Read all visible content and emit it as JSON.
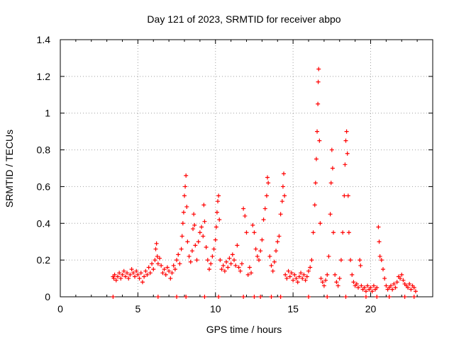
{
  "chart_data": {
    "type": "scatter",
    "title": "Day 121 of 2023, SRMTID for receiver abpo",
    "xlabel": "GPS time / hours",
    "ylabel": "SRMTID / TECUs",
    "xlim": [
      0,
      24
    ],
    "ylim": [
      0,
      1.4
    ],
    "x_ticks": [
      0,
      5,
      10,
      15,
      20
    ],
    "y_ticks": [
      0,
      0.2,
      0.4,
      0.6,
      0.8,
      1,
      1.2,
      1.4
    ],
    "x_tick_labels": [
      "0",
      "5",
      "10",
      "15",
      "20"
    ],
    "y_tick_labels": [
      "0",
      "0.2",
      "0.4",
      "0.6",
      "0.8",
      "1",
      "1.2",
      "1.4"
    ],
    "grid": true,
    "marker": "+",
    "color": "#ff0000",
    "series": [
      {
        "name": "SRMTID",
        "points": [
          [
            3.4,
            0.11
          ],
          [
            3.45,
            0.1
          ],
          [
            3.5,
            0.12
          ],
          [
            3.6,
            0.09
          ],
          [
            3.7,
            0.11
          ],
          [
            3.8,
            0.13
          ],
          [
            3.9,
            0.1
          ],
          [
            4.0,
            0.12
          ],
          [
            4.1,
            0.14
          ],
          [
            4.2,
            0.11
          ],
          [
            4.3,
            0.13
          ],
          [
            4.4,
            0.1
          ],
          [
            4.5,
            0.12
          ],
          [
            4.6,
            0.15
          ],
          [
            4.7,
            0.13
          ],
          [
            4.8,
            0.11
          ],
          [
            4.9,
            0.14
          ],
          [
            5.0,
            0.12
          ],
          [
            5.1,
            0.1
          ],
          [
            5.2,
            0.13
          ],
          [
            5.3,
            0.08
          ],
          [
            5.4,
            0.11
          ],
          [
            5.5,
            0.14
          ],
          [
            5.6,
            0.12
          ],
          [
            5.7,
            0.16
          ],
          [
            5.8,
            0.13
          ],
          [
            5.9,
            0.18
          ],
          [
            6.0,
            0.15
          ],
          [
            6.1,
            0.2
          ],
          [
            6.15,
            0.26
          ],
          [
            6.2,
            0.29
          ],
          [
            6.25,
            0.22
          ],
          [
            6.3,
            0.18
          ],
          [
            6.4,
            0.21
          ],
          [
            6.5,
            0.17
          ],
          [
            6.6,
            0.13
          ],
          [
            6.7,
            0.15
          ],
          [
            6.8,
            0.12
          ],
          [
            6.9,
            0.16
          ],
          [
            7.0,
            0.14
          ],
          [
            7.1,
            0.1
          ],
          [
            7.2,
            0.13
          ],
          [
            7.3,
            0.17
          ],
          [
            7.4,
            0.15
          ],
          [
            7.5,
            0.2
          ],
          [
            7.6,
            0.23
          ],
          [
            7.7,
            0.18
          ],
          [
            7.8,
            0.26
          ],
          [
            7.85,
            0.33
          ],
          [
            7.9,
            0.4
          ],
          [
            7.95,
            0.46
          ],
          [
            8.0,
            0.55
          ],
          [
            8.05,
            0.6
          ],
          [
            8.1,
            0.66
          ],
          [
            8.15,
            0.49
          ],
          [
            8.2,
            0.3
          ],
          [
            8.3,
            0.22
          ],
          [
            8.4,
            0.19
          ],
          [
            8.5,
            0.25
          ],
          [
            8.55,
            0.37
          ],
          [
            8.6,
            0.45
          ],
          [
            8.65,
            0.39
          ],
          [
            8.7,
            0.28
          ],
          [
            8.8,
            0.2
          ],
          [
            8.9,
            0.3
          ],
          [
            9.0,
            0.35
          ],
          [
            9.1,
            0.38
          ],
          [
            9.2,
            0.33
          ],
          [
            9.25,
            0.5
          ],
          [
            9.3,
            0.41
          ],
          [
            9.4,
            0.27
          ],
          [
            9.5,
            0.2
          ],
          [
            9.6,
            0.15
          ],
          [
            9.7,
            0.18
          ],
          [
            9.8,
            0.22
          ],
          [
            9.9,
            0.26
          ],
          [
            10.0,
            0.31
          ],
          [
            10.05,
            0.38
          ],
          [
            10.1,
            0.46
          ],
          [
            10.15,
            0.52
          ],
          [
            10.2,
            0.55
          ],
          [
            10.25,
            0.42
          ],
          [
            10.3,
            0.2
          ],
          [
            10.4,
            0.15
          ],
          [
            10.5,
            0.17
          ],
          [
            10.6,
            0.14
          ],
          [
            10.7,
            0.19
          ],
          [
            10.8,
            0.16
          ],
          [
            10.9,
            0.21
          ],
          [
            11.0,
            0.18
          ],
          [
            11.1,
            0.23
          ],
          [
            11.2,
            0.2
          ],
          [
            11.3,
            0.17
          ],
          [
            11.4,
            0.28
          ],
          [
            11.5,
            0.16
          ],
          [
            11.6,
            0.14
          ],
          [
            11.7,
            0.18
          ],
          [
            11.8,
            0.48
          ],
          [
            11.9,
            0.44
          ],
          [
            12.0,
            0.35
          ],
          [
            12.1,
            0.12
          ],
          [
            12.2,
            0.16
          ],
          [
            12.3,
            0.13
          ],
          [
            12.4,
            0.39
          ],
          [
            12.5,
            0.35
          ],
          [
            12.6,
            0.26
          ],
          [
            12.7,
            0.22
          ],
          [
            12.8,
            0.2
          ],
          [
            12.9,
            0.25
          ],
          [
            13.0,
            0.31
          ],
          [
            13.1,
            0.42
          ],
          [
            13.2,
            0.48
          ],
          [
            13.3,
            0.55
          ],
          [
            13.35,
            0.65
          ],
          [
            13.4,
            0.62
          ],
          [
            13.5,
            0.22
          ],
          [
            13.6,
            0.17
          ],
          [
            13.7,
            0.14
          ],
          [
            13.8,
            0.19
          ],
          [
            13.9,
            0.25
          ],
          [
            14.0,
            0.3
          ],
          [
            14.1,
            0.33
          ],
          [
            14.2,
            0.45
          ],
          [
            14.3,
            0.52
          ],
          [
            14.35,
            0.6
          ],
          [
            14.4,
            0.67
          ],
          [
            14.45,
            0.55
          ],
          [
            14.5,
            0.12
          ],
          [
            14.6,
            0.1
          ],
          [
            14.7,
            0.14
          ],
          [
            14.8,
            0.11
          ],
          [
            14.9,
            0.13
          ],
          [
            15.0,
            0.09
          ],
          [
            15.1,
            0.12
          ],
          [
            15.2,
            0.1
          ],
          [
            15.3,
            0.08
          ],
          [
            15.4,
            0.11
          ],
          [
            15.5,
            0.13
          ],
          [
            15.6,
            0.1
          ],
          [
            15.7,
            0.12
          ],
          [
            15.8,
            0.09
          ],
          [
            15.9,
            0.11
          ],
          [
            16.0,
            0.14
          ],
          [
            16.1,
            0.16
          ],
          [
            16.2,
            0.2
          ],
          [
            16.3,
            0.35
          ],
          [
            16.4,
            0.5
          ],
          [
            16.45,
            0.62
          ],
          [
            16.5,
            0.75
          ],
          [
            16.55,
            0.9
          ],
          [
            16.6,
            1.05
          ],
          [
            16.62,
            1.17
          ],
          [
            16.65,
            1.24
          ],
          [
            16.7,
            0.85
          ],
          [
            16.75,
            0.4
          ],
          [
            16.8,
            0.1
          ],
          [
            16.9,
            0.08
          ],
          [
            17.0,
            0.06
          ],
          [
            17.1,
            0.09
          ],
          [
            17.2,
            0.12
          ],
          [
            17.3,
            0.22
          ],
          [
            17.4,
            0.45
          ],
          [
            17.45,
            0.62
          ],
          [
            17.5,
            0.8
          ],
          [
            17.55,
            0.7
          ],
          [
            17.6,
            0.35
          ],
          [
            17.7,
            0.12
          ],
          [
            17.8,
            0.08
          ],
          [
            17.9,
            0.06
          ],
          [
            18.0,
            0.1
          ],
          [
            18.1,
            0.2
          ],
          [
            18.2,
            0.35
          ],
          [
            18.3,
            0.55
          ],
          [
            18.35,
            0.72
          ],
          [
            18.4,
            0.85
          ],
          [
            18.45,
            0.9
          ],
          [
            18.5,
            0.78
          ],
          [
            18.55,
            0.55
          ],
          [
            18.6,
            0.35
          ],
          [
            18.7,
            0.2
          ],
          [
            18.8,
            0.12
          ],
          [
            18.9,
            0.08
          ],
          [
            19.0,
            0.06
          ],
          [
            19.1,
            0.07
          ],
          [
            19.2,
            0.05
          ],
          [
            19.3,
            0.2
          ],
          [
            19.35,
            0.17
          ],
          [
            19.4,
            0.06
          ],
          [
            19.5,
            0.04
          ],
          [
            19.6,
            0.05
          ],
          [
            19.7,
            0.03
          ],
          [
            19.8,
            0.06
          ],
          [
            19.9,
            0.04
          ],
          [
            20.0,
            0.05
          ],
          [
            20.1,
            0.03
          ],
          [
            20.2,
            0.06
          ],
          [
            20.3,
            0.04
          ],
          [
            20.4,
            0.05
          ],
          [
            20.5,
            0.38
          ],
          [
            20.55,
            0.3
          ],
          [
            20.6,
            0.22
          ],
          [
            20.7,
            0.2
          ],
          [
            20.8,
            0.15
          ],
          [
            20.9,
            0.1
          ],
          [
            21.0,
            0.06
          ],
          [
            21.1,
            0.04
          ],
          [
            21.2,
            0.05
          ],
          [
            21.3,
            0.06
          ],
          [
            21.4,
            0.04
          ],
          [
            21.5,
            0.07
          ],
          [
            21.6,
            0.05
          ],
          [
            21.7,
            0.08
          ],
          [
            21.8,
            0.11
          ],
          [
            21.9,
            0.1
          ],
          [
            22.0,
            0.12
          ],
          [
            22.1,
            0.09
          ],
          [
            22.2,
            0.07
          ],
          [
            22.3,
            0.06
          ],
          [
            22.4,
            0.05
          ],
          [
            22.5,
            0.07
          ],
          [
            22.6,
            0.04
          ],
          [
            22.7,
            0.06
          ],
          [
            22.8,
            0.05
          ],
          [
            22.9,
            0.03
          ],
          [
            3.4,
            0.0
          ],
          [
            6.3,
            0.0
          ],
          [
            7.5,
            0.0
          ],
          [
            8.1,
            0.0
          ],
          [
            9.3,
            0.0
          ],
          [
            10.2,
            0.0
          ],
          [
            11.8,
            0.0
          ],
          [
            12.5,
            0.0
          ],
          [
            12.9,
            0.0
          ],
          [
            13.6,
            0.0
          ],
          [
            14.2,
            0.0
          ],
          [
            16.0,
            0.0
          ],
          [
            17.2,
            0.0
          ],
          [
            18.4,
            0.0
          ],
          [
            19.7,
            0.0
          ],
          [
            20.4,
            0.0
          ],
          [
            21.2,
            0.0
          ],
          [
            22.2,
            0.0
          ],
          [
            22.8,
            0.0
          ]
        ]
      }
    ]
  }
}
